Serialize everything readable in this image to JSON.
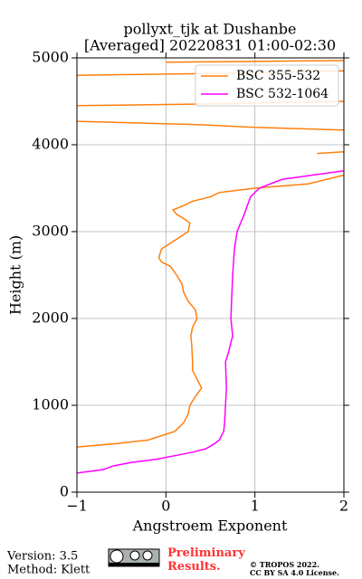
{
  "chart_data": {
    "type": "line",
    "title": [
      "pollyxt_tjk at Dushanbe",
      "[Averaged] 20220831 01:00-02:30"
    ],
    "xlabel": "Angstroem Exponent",
    "ylabel": "Height (m)",
    "xlim": [
      -1,
      2
    ],
    "xticks": [
      {
        "value": -1,
        "label": "−1"
      },
      0,
      1,
      2
    ],
    "ylim": [
      0,
      5000
    ],
    "yticks": [
      0,
      1000,
      2000,
      3000,
      4000,
      5000
    ],
    "grid": true,
    "legend": "upper right",
    "series": [
      {
        "name": "BSC 355-532",
        "color": "#ff7f0e",
        "y": [
          520,
          560,
          600,
          650,
          700,
          800,
          900,
          1000,
          1100,
          1200,
          1300,
          1400,
          1500,
          1700,
          1800,
          1900,
          2000,
          2100,
          2200,
          2300,
          2400,
          2500,
          2600,
          2650,
          2700,
          2800,
          2900,
          3000,
          3100,
          3150,
          3200,
          3250,
          3300,
          3350,
          3400,
          3450,
          3500,
          3550,
          3600,
          3650,
          3700,
          3900,
          3920,
          3940,
          4170,
          4200,
          4230,
          4270,
          4300,
          4450,
          4470,
          4500,
          4520,
          4800,
          4820,
          4850,
          4870,
          4950,
          4970
        ],
        "values": [
          -1.0,
          -0.55,
          -0.2,
          -0.05,
          0.1,
          0.2,
          0.25,
          0.27,
          0.33,
          0.4,
          0.35,
          0.3,
          0.3,
          0.29,
          0.28,
          0.3,
          0.35,
          0.33,
          0.25,
          0.2,
          0.18,
          0.12,
          0.05,
          -0.05,
          -0.08,
          -0.05,
          0.1,
          0.25,
          0.27,
          0.2,
          0.12,
          0.08,
          0.2,
          0.3,
          0.5,
          0.6,
          1.0,
          1.6,
          1.8,
          2.0,
          null,
          1.7,
          2.0,
          null,
          2.0,
          1.0,
          0.4,
          -1.0,
          null,
          -1.0,
          0.5,
          2.0,
          null,
          -1.0,
          0.5,
          2.0,
          null,
          0.0,
          2.0
        ]
      },
      {
        "name": "BSC 532-1064",
        "color": "#ff00ff",
        "y": [
          220,
          260,
          300,
          340,
          380,
          420,
          460,
          500,
          560,
          600,
          700,
          800,
          1000,
          1200,
          1500,
          1600,
          1800,
          2000,
          2500,
          2800,
          3000,
          3200,
          3400,
          3500,
          3600,
          3700
        ],
        "values": [
          -1.0,
          -0.7,
          -0.6,
          -0.4,
          -0.1,
          0.1,
          0.3,
          0.45,
          0.55,
          0.6,
          0.65,
          0.66,
          0.67,
          0.68,
          0.67,
          0.7,
          0.75,
          0.73,
          0.75,
          0.77,
          0.8,
          0.88,
          0.95,
          1.05,
          1.3,
          2.0
        ]
      }
    ]
  },
  "footer": {
    "version": "Version: 3.5",
    "method": "Method: Klett",
    "status": "Preliminary Results.",
    "copyright": "© TROPOS 2022.",
    "license": "CC BY SA 4.0 License."
  }
}
